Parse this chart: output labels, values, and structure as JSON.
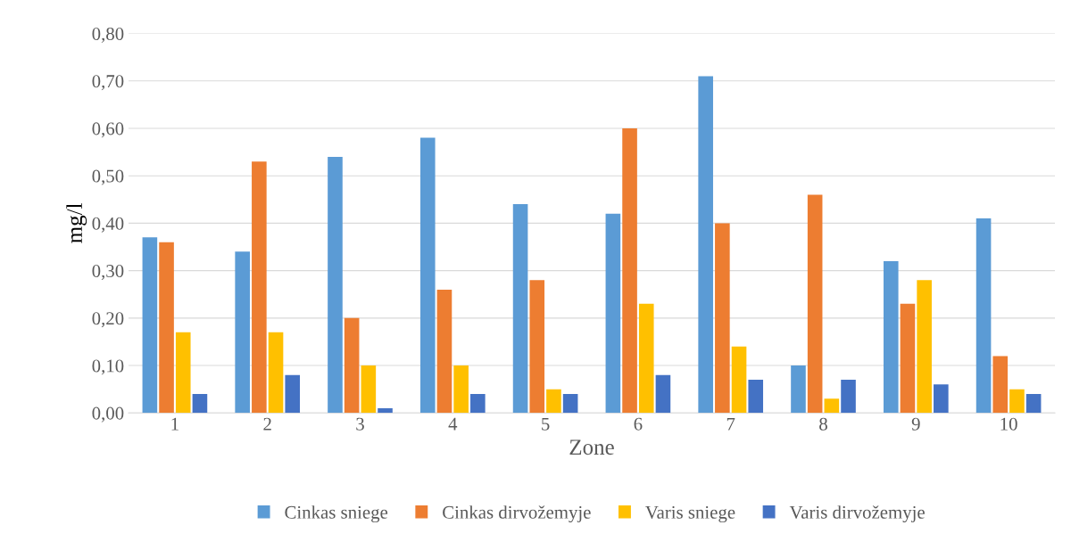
{
  "chart_data": {
    "type": "bar",
    "xlabel": "Zone",
    "ylabel": "mg/l",
    "categories": [
      "1",
      "2",
      "3",
      "4",
      "5",
      "6",
      "7",
      "8",
      "9",
      "10"
    ],
    "series": [
      {
        "name": "Cinkas sniege",
        "color": "#5b9bd5",
        "values": [
          0.37,
          0.34,
          0.54,
          0.58,
          0.44,
          0.42,
          0.71,
          0.1,
          0.32,
          0.41
        ]
      },
      {
        "name": "Cinkas dirvožemyje",
        "color": "#ed7d31",
        "values": [
          0.36,
          0.53,
          0.2,
          0.26,
          0.28,
          0.6,
          0.4,
          0.46,
          0.23,
          0.12
        ]
      },
      {
        "name": "Varis sniege",
        "color": "#ffc000",
        "values": [
          0.17,
          0.17,
          0.1,
          0.1,
          0.05,
          0.23,
          0.14,
          0.03,
          0.28,
          0.05
        ]
      },
      {
        "name": "Varis dirvožemyje",
        "color": "#4472c4",
        "values": [
          0.04,
          0.08,
          0.01,
          0.04,
          0.04,
          0.08,
          0.07,
          0.07,
          0.06,
          0.04
        ]
      }
    ],
    "ylim": [
      0,
      0.8
    ],
    "yticks": [
      {
        "value": 0,
        "label": "0,00"
      },
      {
        "value": 0.1,
        "label": "0,10"
      },
      {
        "value": 0.2,
        "label": "0,20"
      },
      {
        "value": 0.3,
        "label": "0,30"
      },
      {
        "value": 0.4,
        "label": "0,40"
      },
      {
        "value": 0.5,
        "label": "0,50"
      },
      {
        "value": 0.6,
        "label": "0,60"
      },
      {
        "value": 0.7,
        "label": "0,70"
      },
      {
        "value": 0.8,
        "label": "0,80"
      }
    ],
    "grid": "y",
    "legend": "bottom"
  }
}
